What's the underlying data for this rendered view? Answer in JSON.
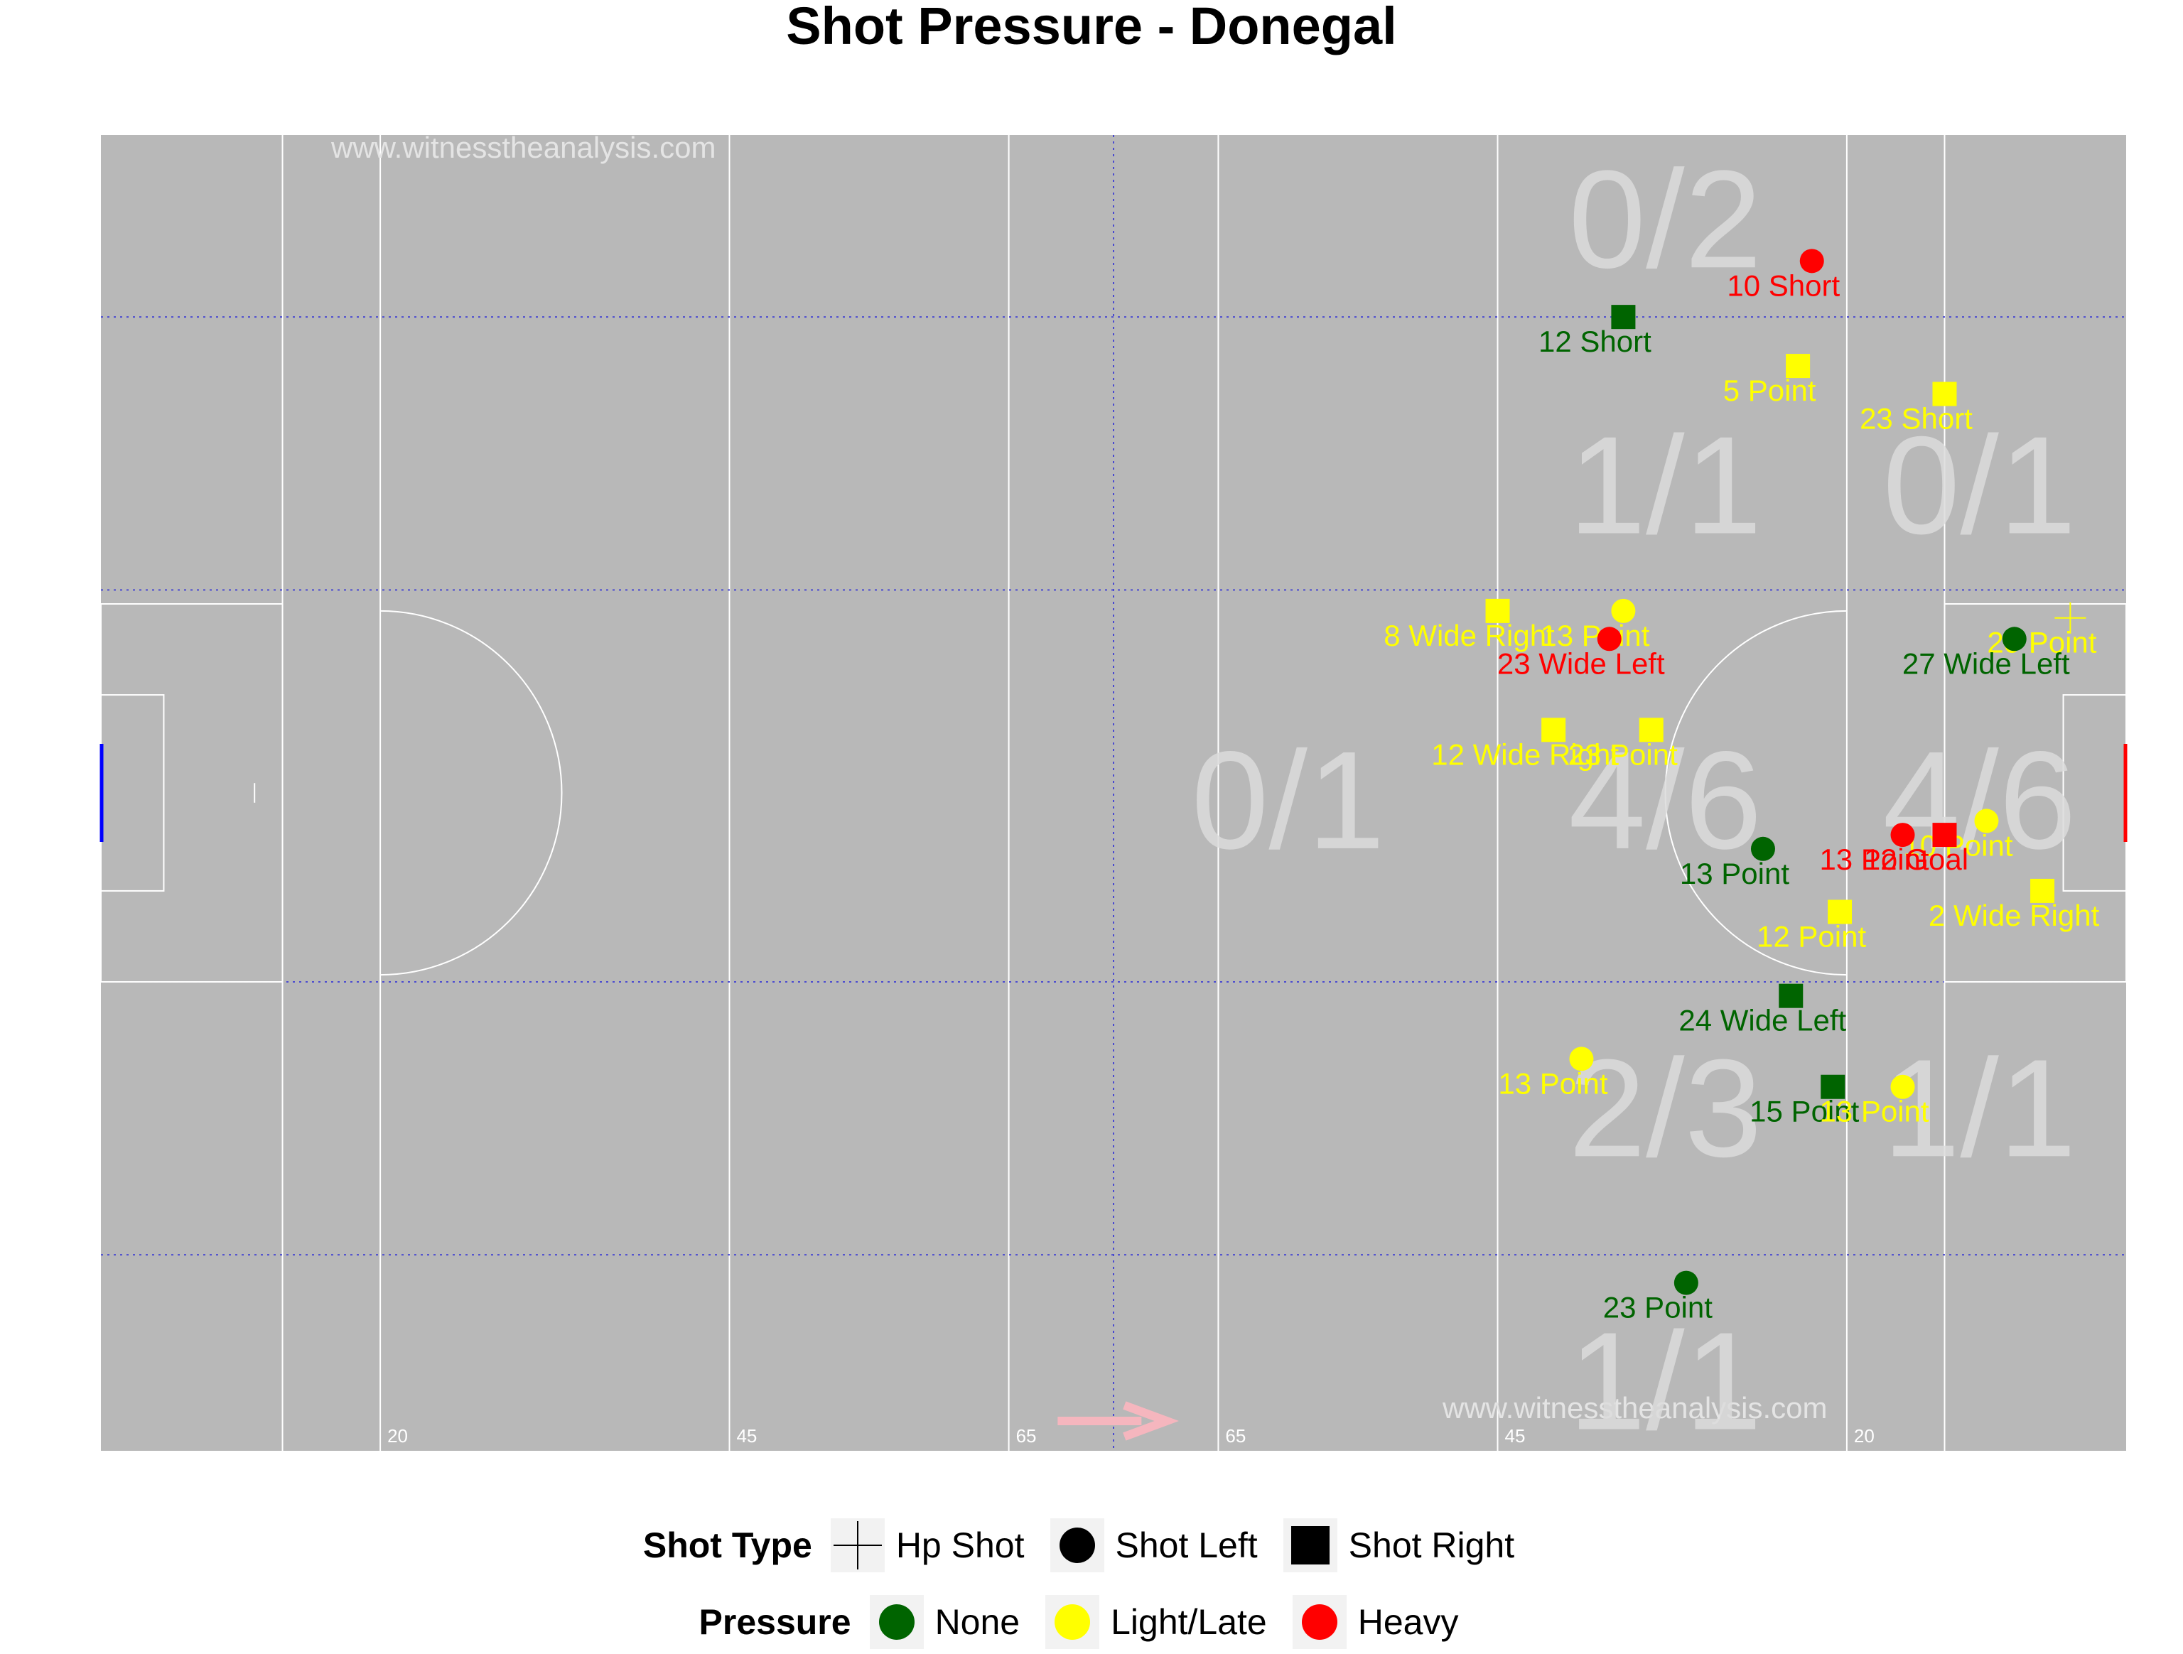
{
  "title": "Shot Pressure - Donegal",
  "watermarks": [
    "www.witnesstheanalysis.com",
    "www.witnesstheanalysis.com"
  ],
  "colors": {
    "pitch": "#b8b8b8",
    "none": "#006400",
    "light_late": "#ffff00",
    "heavy": "#ff0000",
    "zone_text": "#dcdcdc",
    "arrow": "#f5b6be"
  },
  "chart_data": {
    "type": "scatter",
    "title": "Shot Pressure - Donegal",
    "xlim": [
      0,
      145
    ],
    "ylim": [
      0,
      94
    ],
    "distance_labels": [
      "20",
      "45",
      "65",
      "65",
      "45",
      "20"
    ],
    "zone_grid_y": [
      14,
      33.5,
      61.5,
      81
    ],
    "zones": [
      {
        "label": "0/2",
        "x": 112,
        "y": 88
      },
      {
        "label": "1/1",
        "x": 112,
        "y": 69
      },
      {
        "label": "0/1",
        "x": 134.5,
        "y": 69
      },
      {
        "label": "0/1",
        "x": 85,
        "y": 46.5
      },
      {
        "label": "4/6",
        "x": 112,
        "y": 46.5
      },
      {
        "label": "4/6",
        "x": 134.5,
        "y": 46.5
      },
      {
        "label": "2/3",
        "x": 112,
        "y": 24.5
      },
      {
        "label": "1/1",
        "x": 134.5,
        "y": 24.5
      },
      {
        "label": "1/1",
        "x": 112,
        "y": 5
      }
    ],
    "shots": [
      {
        "label": "10 Short",
        "x": 122.5,
        "y": 85,
        "type": "Shot Left",
        "pressure": "Heavy"
      },
      {
        "label": "12 Short",
        "x": 109,
        "y": 81,
        "type": "Shot Right",
        "pressure": "None"
      },
      {
        "label": "5 Point",
        "x": 121.5,
        "y": 77.5,
        "type": "Shot Right",
        "pressure": "Light/Late"
      },
      {
        "label": "23 Short",
        "x": 132,
        "y": 75.5,
        "type": "Shot Right",
        "pressure": "Light/Late"
      },
      {
        "label": "8 Wide Right",
        "x": 100,
        "y": 60,
        "type": "Shot Right",
        "pressure": "Light/Late"
      },
      {
        "label": "13 Point",
        "x": 109,
        "y": 60,
        "type": "Shot Left",
        "pressure": "Light/Late"
      },
      {
        "label": "20 Point",
        "x": 141,
        "y": 59.5,
        "type": "Hp Shot",
        "pressure": "Light/Late"
      },
      {
        "label": "23 Wide Left",
        "x": 108,
        "y": 58,
        "type": "Shot Left",
        "pressure": "Heavy"
      },
      {
        "label": "27 Wide Left",
        "x": 137,
        "y": 58,
        "type": "Shot Left",
        "pressure": "None"
      },
      {
        "label": "12 Wide Right",
        "x": 104,
        "y": 51.5,
        "type": "Shot Right",
        "pressure": "Light/Late"
      },
      {
        "label": "23 Point",
        "x": 111,
        "y": 51.5,
        "type": "Shot Right",
        "pressure": "Light/Late"
      },
      {
        "label": "10 Point",
        "x": 135,
        "y": 45,
        "type": "Shot Left",
        "pressure": "Light/Late"
      },
      {
        "label": "13 Point",
        "x": 129,
        "y": 44,
        "type": "Shot Left",
        "pressure": "Heavy"
      },
      {
        "label": "12 Goal",
        "x": 132,
        "y": 44,
        "type": "Shot Right",
        "pressure": "Heavy"
      },
      {
        "label": "13 Point",
        "x": 119,
        "y": 43,
        "type": "Shot Left",
        "pressure": "None"
      },
      {
        "label": "2 Wide Right",
        "x": 139,
        "y": 40,
        "type": "Shot Right",
        "pressure": "Light/Late"
      },
      {
        "label": "12 Point",
        "x": 124.5,
        "y": 38.5,
        "type": "Shot Right",
        "pressure": "Light/Late"
      },
      {
        "label": "24 Wide Left",
        "x": 121,
        "y": 32.5,
        "type": "Shot Right",
        "pressure": "None"
      },
      {
        "label": "13 Point",
        "x": 106,
        "y": 28,
        "type": "Shot Left",
        "pressure": "Light/Late"
      },
      {
        "label": "15 Point",
        "x": 124,
        "y": 26,
        "type": "Shot Right",
        "pressure": "None"
      },
      {
        "label": "13 Point",
        "x": 129,
        "y": 26,
        "type": "Shot Left",
        "pressure": "Light/Late"
      },
      {
        "label": "23 Point",
        "x": 113.5,
        "y": 12,
        "type": "Shot Left",
        "pressure": "None"
      }
    ]
  },
  "legend": {
    "shot_type_title": "Shot Type",
    "shot_types": [
      {
        "symbol": "cross",
        "label": "Hp Shot"
      },
      {
        "symbol": "circle",
        "label": "Shot Left"
      },
      {
        "symbol": "square",
        "label": "Shot Right"
      }
    ],
    "pressure_title": "Pressure",
    "pressures": [
      {
        "color": "#006400",
        "label": "None"
      },
      {
        "color": "#ffff00",
        "label": "Light/Late"
      },
      {
        "color": "#ff0000",
        "label": "Heavy"
      }
    ]
  }
}
